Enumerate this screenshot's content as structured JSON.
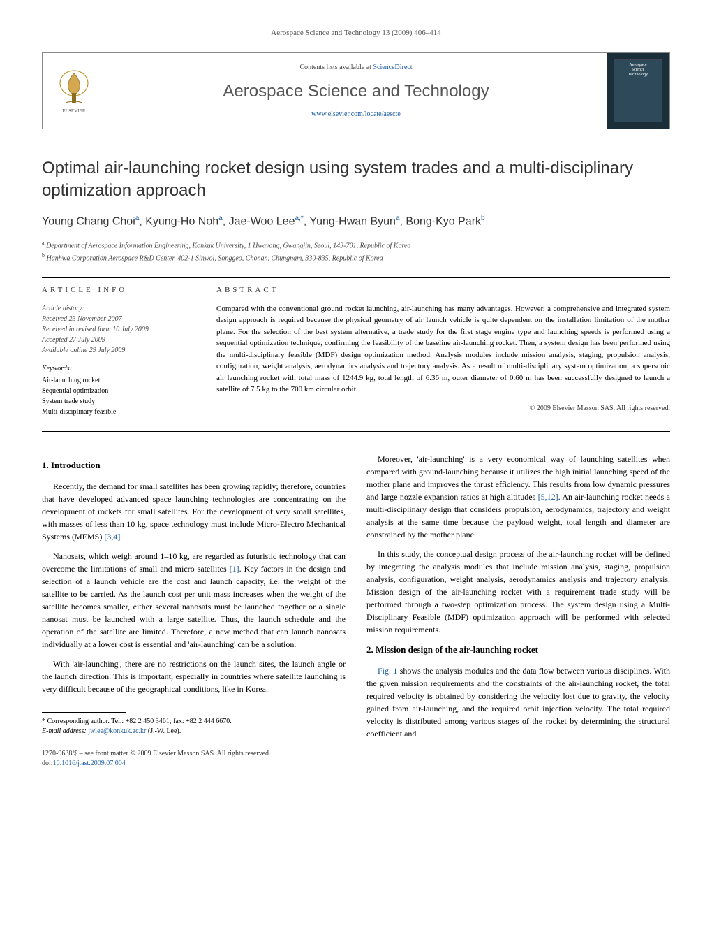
{
  "header_citation": "Aerospace Science and Technology 13 (2009) 406–414",
  "banner": {
    "contents_line_pre": "Contents lists available at ",
    "contents_line_link": "ScienceDirect",
    "journal_name": "Aerospace Science and Technology",
    "journal_url": "www.elsevier.com/locate/aescte",
    "cover_line1": "Aerospace",
    "cover_line2": "Science",
    "cover_line3": "Technology"
  },
  "title": "Optimal air-launching rocket design using system trades and a multi-disciplinary optimization approach",
  "authors_html": "Young Chang Choi<sup>a</sup>, Kyung-Ho Noh<sup>a</sup>, Jae-Woo Lee<sup>a,*</sup>, Yung-Hwan Byun<sup>a</sup>, Bong-Kyo Park<sup>b</sup>",
  "affiliations": {
    "a": "Department of Aerospace Information Engineering, Konkuk University, 1 Hwayang, Gwangjin, Seoul, 143-701, Republic of Korea",
    "b": "Hanhwa Corporation Aerospace R&D Center, 402-1 Sinwol, Songgeo, Chonan, Chungnam, 330-835, Republic of Korea"
  },
  "article_info_heading": "ARTICLE INFO",
  "abstract_heading": "ABSTRACT",
  "history": {
    "label": "Article history:",
    "received": "Received 23 November 2007",
    "revised": "Received in revised form 10 July 2009",
    "accepted": "Accepted 27 July 2009",
    "online": "Available online 29 July 2009"
  },
  "keywords_label": "Keywords:",
  "keywords": [
    "Air-launching rocket",
    "Sequential optimization",
    "System trade study",
    "Multi-disciplinary feasible"
  ],
  "abstract": "Compared with the conventional ground rocket launching, air-launching has many advantages. However, a comprehensive and integrated system design approach is required because the physical geometry of air launch vehicle is quite dependent on the installation limitation of the mother plane. For the selection of the best system alternative, a trade study for the first stage engine type and launching speeds is performed using a sequential optimization technique, confirming the feasibility of the baseline air-launching rocket. Then, a system design has been performed using the multi-disciplinary feasible (MDF) design optimization method. Analysis modules include mission analysis, staging, propulsion analysis, configuration, weight analysis, aerodynamics analysis and trajectory analysis. As a result of multi-disciplinary system optimization, a supersonic air launching rocket with total mass of 1244.9 kg, total length of 6.36 m, outer diameter of 0.60 m has been successfully designed to launch a satellite of 7.5 kg to the 700 km circular orbit.",
  "abstract_copyright": "© 2009 Elsevier Masson SAS. All rights reserved.",
  "sections": {
    "s1_heading": "1. Introduction",
    "s1_p1": "Recently, the demand for small satellites has been growing rapidly; therefore, countries that have developed advanced space launching technologies are concentrating on the development of rockets for small satellites. For the development of very small satellites, with masses of less than 10 kg, space technology must include Micro-Electro Mechanical Systems (MEMS) ",
    "s1_p1_cite": "[3,4]",
    "s1_p1_end": ".",
    "s1_p2a": "Nanosats, which weigh around 1–10 kg, are regarded as futuristic technology that can overcome the limitations of small and micro satellites ",
    "s1_p2_cite": "[1]",
    "s1_p2b": ". Key factors in the design and selection of a launch vehicle are the cost and launch capacity, i.e. the weight of the satellite to be carried. As the launch cost per unit mass increases when the weight of the satellite becomes smaller, either several nanosats must be launched together or a single nanosat must be launched with a large satellite. Thus, the launch schedule and the operation of the satellite are limited. Therefore, a new method that can launch nanosats individually at a lower cost is essential and 'air-launching' can be a solution.",
    "s1_p3": "With 'air-launching', there are no restrictions on the launch sites, the launch angle or the launch direction. This is important, especially in countries where satellite launching is very difficult because of the geographical conditions, like in Korea.",
    "s1_p4a": "Moreover, 'air-launching' is a very economical way of launching satellites when compared with ground-launching because it utilizes the high initial launching speed of the mother plane and improves the thrust efficiency. This results from low dynamic pressures and large nozzle expansion ratios at high altitudes ",
    "s1_p4_cite": "[5,12]",
    "s1_p4b": ". An air-launching rocket needs a multi-disciplinary design that considers propulsion, aerodynamics, trajectory and weight analysis at the same time because the payload weight, total length and diameter are constrained by the mother plane.",
    "s1_p5": "In this study, the conceptual design process of the air-launching rocket will be defined by integrating the analysis modules that include mission analysis, staging, propulsion analysis, configuration, weight analysis, aerodynamics analysis and trajectory analysis. Mission design of the air-launching rocket with a requirement trade study will be performed through a two-step optimization process. The system design using a Multi-Disciplinary Feasible (MDF) optimization approach will be performed with selected mission requirements.",
    "s2_heading": "2. Mission design of the air-launching rocket",
    "s2_p1a": "",
    "s2_p1_fig": "Fig. 1",
    "s2_p1b": " shows the analysis modules and the data flow between various disciplines. With the given mission requirements and the constraints of the air-launching rocket, the total required velocity is obtained by considering the velocity lost due to gravity, the velocity gained from air-launching, and the required orbit injection velocity. The total required velocity is distributed among various stages of the rocket by determining the structural coefficient and"
  },
  "footnote": {
    "marker": "*",
    "text": "Corresponding author. Tel.: +82 2 450 3461; fax: +82 2 444 6670.",
    "email_label": "E-mail address: ",
    "email": "jwlee@konkuk.ac.kr",
    "email_tail": " (J.-W. Lee)."
  },
  "footer": {
    "issn": "1270-9638/$ – see front matter © 2009 Elsevier Masson SAS. All rights reserved.",
    "doi_label": "doi:",
    "doi": "10.1016/j.ast.2009.07.004"
  },
  "colors": {
    "link": "#1a5a9e",
    "text": "#000000",
    "muted": "#555555"
  }
}
